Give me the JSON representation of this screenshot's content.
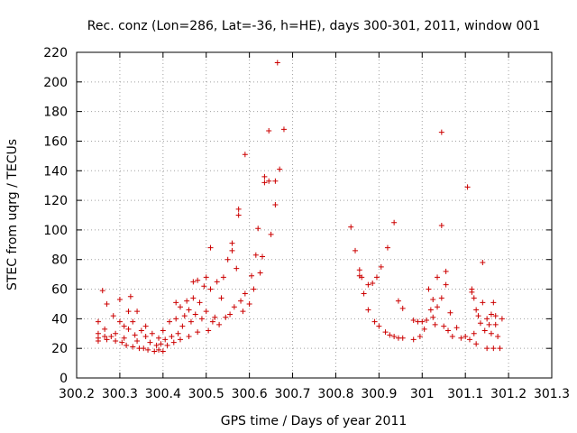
{
  "chart_data": {
    "type": "scatter",
    "title": "Rec. conz (Lon=286, Lat=-36, h=HE), days 300-301, 2011, window 001",
    "xlabel": "GPS time / Days of year 2011",
    "ylabel": "STEC from uqrg / TECUs",
    "xlim": [
      300.2,
      301.3
    ],
    "ylim": [
      0,
      220
    ],
    "xticks": [
      "300.2",
      "300.3",
      "300.4",
      "300.5",
      "300.6",
      "300.7",
      "300.8",
      "300.9",
      "301",
      "301.1",
      "301.2",
      "301.3"
    ],
    "yticks": [
      "0",
      "20",
      "40",
      "60",
      "80",
      "100",
      "120",
      "140",
      "160",
      "180",
      "200",
      "220"
    ],
    "grid": true,
    "marker": "+",
    "color": "#cc0000",
    "series": [
      {
        "name": "STEC",
        "points": [
          [
            300.25,
            38
          ],
          [
            300.25,
            30
          ],
          [
            300.25,
            27
          ],
          [
            300.25,
            25
          ],
          [
            300.26,
            59
          ],
          [
            300.265,
            33
          ],
          [
            300.265,
            28
          ],
          [
            300.27,
            50
          ],
          [
            300.27,
            26
          ],
          [
            300.28,
            28
          ],
          [
            300.285,
            42
          ],
          [
            300.29,
            25
          ],
          [
            300.29,
            30
          ],
          [
            300.3,
            53
          ],
          [
            300.3,
            38
          ],
          [
            300.305,
            24
          ],
          [
            300.31,
            35
          ],
          [
            300.31,
            27
          ],
          [
            300.315,
            22
          ],
          [
            300.32,
            45
          ],
          [
            300.32,
            33
          ],
          [
            300.325,
            55
          ],
          [
            300.33,
            38
          ],
          [
            300.33,
            21
          ],
          [
            300.335,
            29
          ],
          [
            300.34,
            45
          ],
          [
            300.34,
            25
          ],
          [
            300.345,
            20
          ],
          [
            300.35,
            32
          ],
          [
            300.355,
            20
          ],
          [
            300.36,
            35
          ],
          [
            300.36,
            28
          ],
          [
            300.365,
            19
          ],
          [
            300.37,
            24
          ],
          [
            300.375,
            30
          ],
          [
            300.38,
            18
          ],
          [
            300.385,
            22
          ],
          [
            300.39,
            27
          ],
          [
            300.39,
            19
          ],
          [
            300.395,
            23
          ],
          [
            300.4,
            32
          ],
          [
            300.4,
            18
          ],
          [
            300.405,
            26
          ],
          [
            300.41,
            22
          ],
          [
            300.415,
            38
          ],
          [
            300.42,
            28
          ],
          [
            300.425,
            24
          ],
          [
            300.43,
            51
          ],
          [
            300.43,
            40
          ],
          [
            300.435,
            30
          ],
          [
            300.44,
            48
          ],
          [
            300.44,
            26
          ],
          [
            300.445,
            35
          ],
          [
            300.45,
            42
          ],
          [
            300.455,
            52
          ],
          [
            300.46,
            46
          ],
          [
            300.46,
            28
          ],
          [
            300.465,
            38
          ],
          [
            300.47,
            65
          ],
          [
            300.47,
            54
          ],
          [
            300.475,
            43
          ],
          [
            300.48,
            66
          ],
          [
            300.48,
            31
          ],
          [
            300.485,
            51
          ],
          [
            300.49,
            40
          ],
          [
            300.495,
            62
          ],
          [
            300.5,
            68
          ],
          [
            300.5,
            45
          ],
          [
            300.505,
            32
          ],
          [
            300.51,
            88
          ],
          [
            300.51,
            60
          ],
          [
            300.515,
            38
          ],
          [
            300.52,
            41
          ],
          [
            300.525,
            65
          ],
          [
            300.53,
            36
          ],
          [
            300.535,
            54
          ],
          [
            300.54,
            68
          ],
          [
            300.545,
            41
          ],
          [
            300.55,
            80
          ],
          [
            300.555,
            43
          ],
          [
            300.56,
            86
          ],
          [
            300.56,
            91
          ],
          [
            300.565,
            48
          ],
          [
            300.57,
            74
          ],
          [
            300.575,
            110
          ],
          [
            300.575,
            114
          ],
          [
            300.58,
            52
          ],
          [
            300.585,
            45
          ],
          [
            300.59,
            151
          ],
          [
            300.59,
            57
          ],
          [
            300.6,
            50
          ],
          [
            300.605,
            69
          ],
          [
            300.61,
            60
          ],
          [
            300.615,
            83
          ],
          [
            300.62,
            101
          ],
          [
            300.625,
            71
          ],
          [
            300.63,
            82
          ],
          [
            300.635,
            136
          ],
          [
            300.635,
            132
          ],
          [
            300.645,
            133
          ],
          [
            300.645,
            167
          ],
          [
            300.65,
            97
          ],
          [
            300.66,
            133
          ],
          [
            300.66,
            117
          ],
          [
            300.665,
            213
          ],
          [
            300.67,
            141
          ],
          [
            300.68,
            168
          ],
          [
            300.835,
            102
          ],
          [
            300.845,
            86
          ],
          [
            300.855,
            73
          ],
          [
            300.855,
            69
          ],
          [
            300.86,
            68
          ],
          [
            300.865,
            57
          ],
          [
            300.875,
            63
          ],
          [
            300.875,
            46
          ],
          [
            300.885,
            64
          ],
          [
            300.89,
            38
          ],
          [
            300.895,
            68
          ],
          [
            300.9,
            35
          ],
          [
            300.905,
            75
          ],
          [
            300.915,
            31
          ],
          [
            300.92,
            88
          ],
          [
            300.925,
            29
          ],
          [
            300.935,
            105
          ],
          [
            300.935,
            28
          ],
          [
            300.945,
            52
          ],
          [
            300.945,
            27
          ],
          [
            300.955,
            47
          ],
          [
            300.955,
            27
          ],
          [
            300.98,
            39
          ],
          [
            300.98,
            26
          ],
          [
            300.99,
            38
          ],
          [
            300.995,
            28
          ],
          [
            301.0,
            38
          ],
          [
            301.005,
            33
          ],
          [
            301.01,
            39
          ],
          [
            301.015,
            60
          ],
          [
            301.02,
            46
          ],
          [
            301.025,
            53
          ],
          [
            301.025,
            41
          ],
          [
            301.03,
            36
          ],
          [
            301.035,
            68
          ],
          [
            301.035,
            48
          ],
          [
            301.045,
            166
          ],
          [
            301.045,
            103
          ],
          [
            301.045,
            54
          ],
          [
            301.05,
            35
          ],
          [
            301.055,
            72
          ],
          [
            301.055,
            63
          ],
          [
            301.06,
            32
          ],
          [
            301.065,
            44
          ],
          [
            301.07,
            28
          ],
          [
            301.08,
            34
          ],
          [
            301.09,
            27
          ],
          [
            301.1,
            28
          ],
          [
            301.105,
            129
          ],
          [
            301.11,
            26
          ],
          [
            301.115,
            60
          ],
          [
            301.115,
            58
          ],
          [
            301.12,
            54
          ],
          [
            301.12,
            30
          ],
          [
            301.125,
            46
          ],
          [
            301.125,
            23
          ],
          [
            301.13,
            42
          ],
          [
            301.135,
            37
          ],
          [
            301.14,
            78
          ],
          [
            301.14,
            51
          ],
          [
            301.145,
            32
          ],
          [
            301.15,
            40
          ],
          [
            301.15,
            20
          ],
          [
            301.155,
            36
          ],
          [
            301.16,
            43
          ],
          [
            301.16,
            30
          ],
          [
            301.165,
            20
          ],
          [
            301.165,
            51
          ],
          [
            301.17,
            42
          ],
          [
            301.17,
            36
          ],
          [
            301.175,
            28
          ],
          [
            301.18,
            20
          ],
          [
            301.185,
            40
          ]
        ]
      }
    ]
  }
}
